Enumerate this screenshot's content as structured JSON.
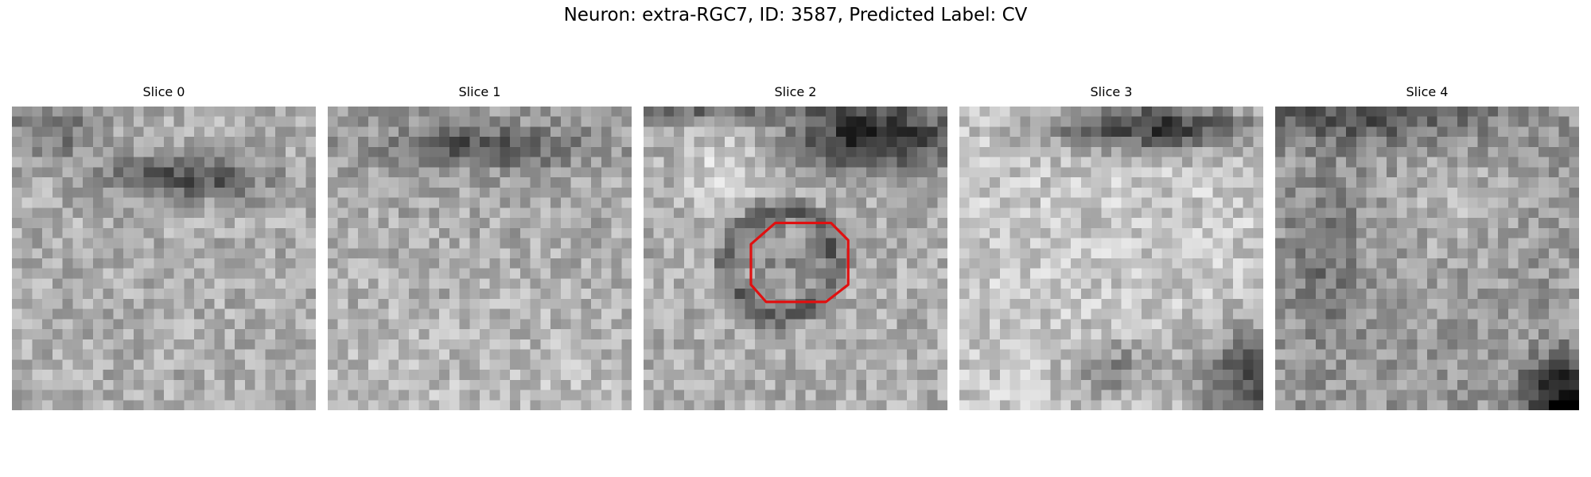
{
  "figure": {
    "suptitle": "Neuron: extra-RGC7, ID: 3587, Predicted Label: CV",
    "slices": [
      {
        "title": "Slice 0"
      },
      {
        "title": "Slice 1"
      },
      {
        "title": "Slice 2"
      },
      {
        "title": "Slice 3"
      },
      {
        "title": "Slice 4"
      }
    ],
    "colormap": "gray",
    "roi_outline_color": "#e01010"
  }
}
